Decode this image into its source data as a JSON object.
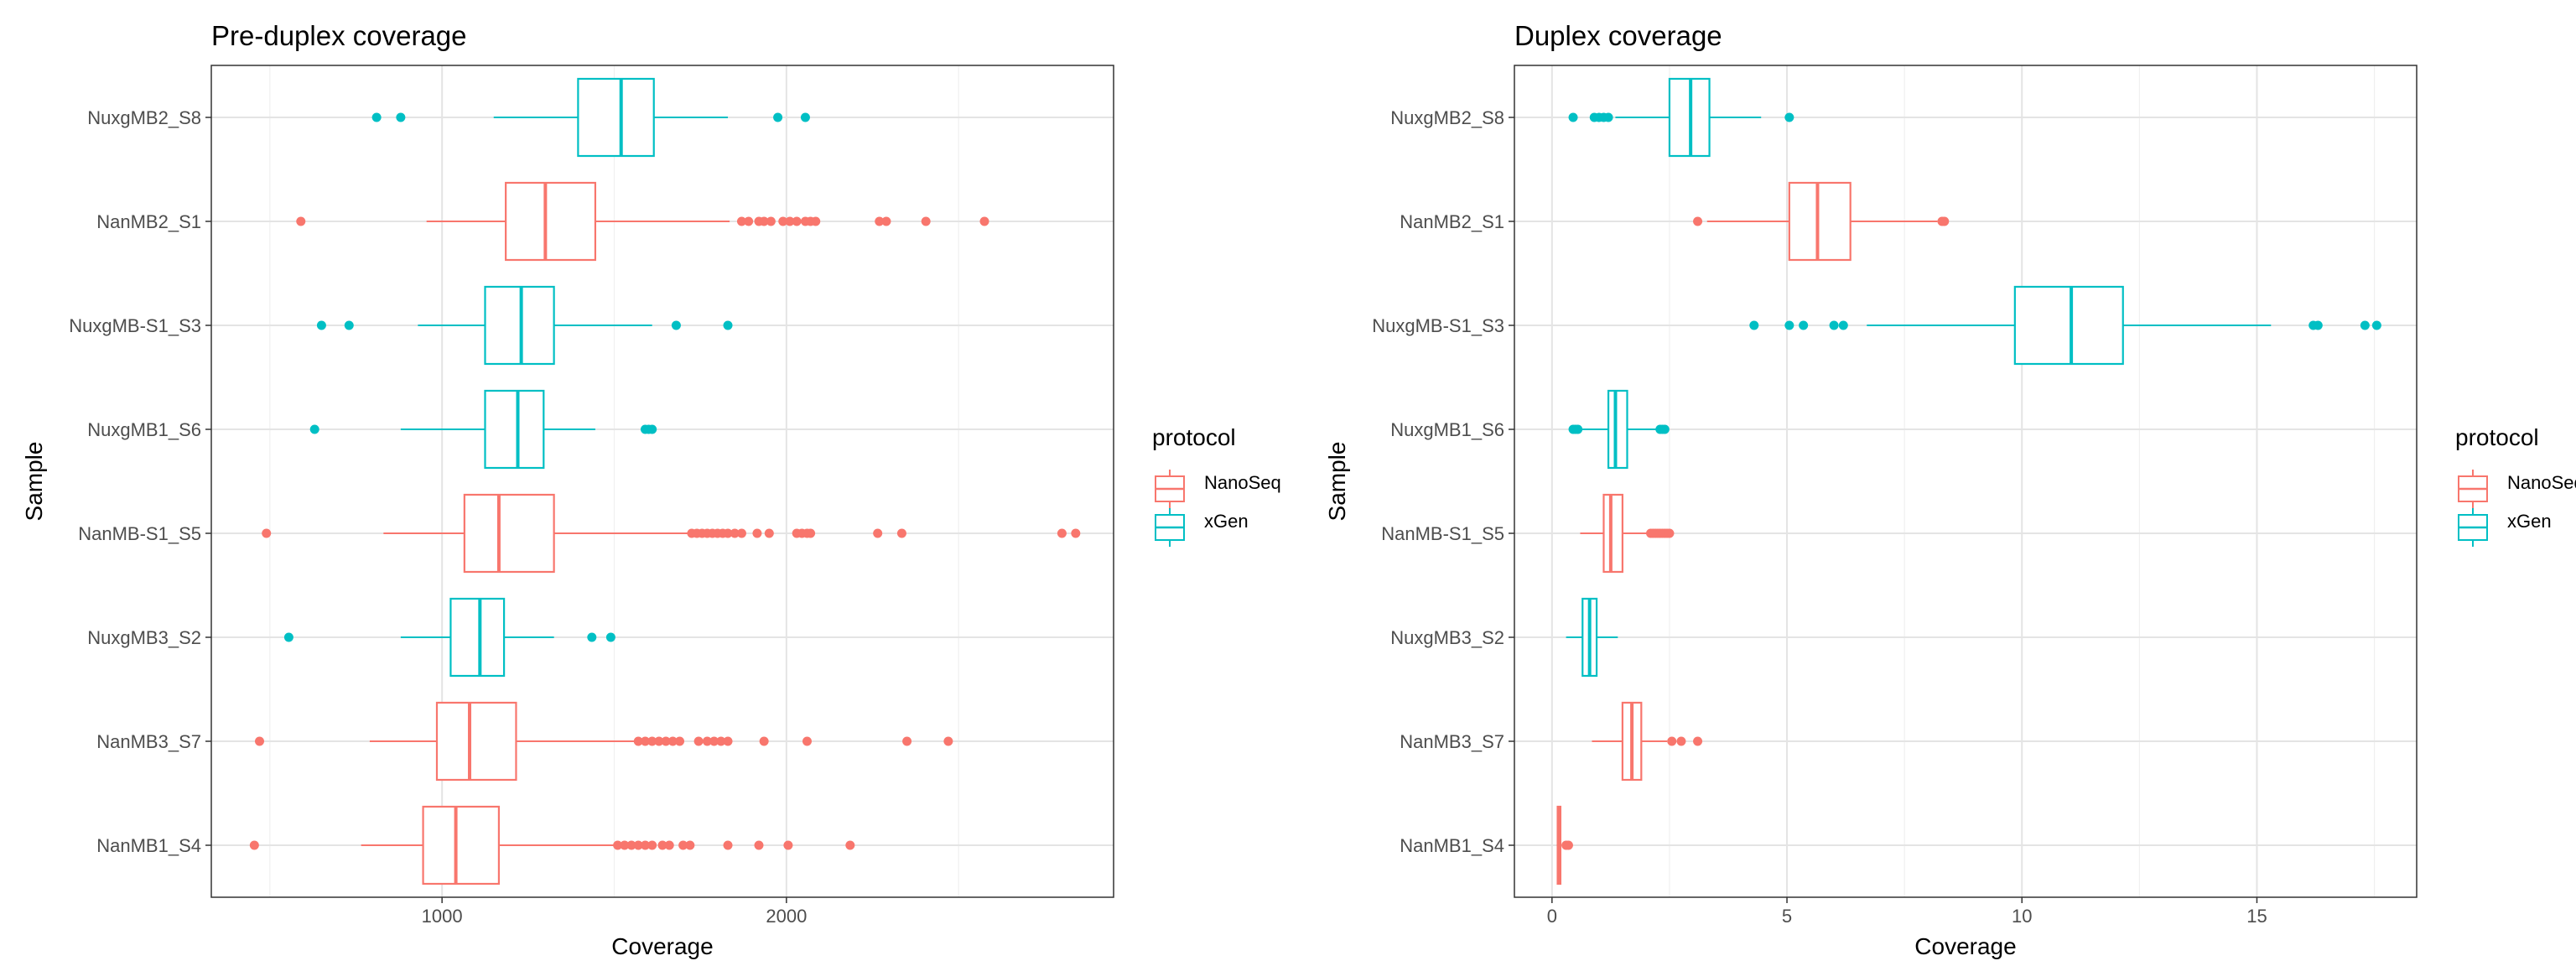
{
  "legend": {
    "title": "protocol",
    "items": [
      {
        "label": "NanoSeq",
        "color": "#F8766D"
      },
      {
        "label": "xGen",
        "color": "#00BFC4"
      }
    ]
  },
  "chart_data": [
    {
      "type": "boxplot",
      "orientation": "horizontal",
      "title": "Pre-duplex coverage",
      "xlabel": "Coverage",
      "ylabel": "Sample",
      "xlim": [
        330,
        2950
      ],
      "xticks": [
        1000,
        2000
      ],
      "grid": true,
      "legend_position": "right",
      "categories": [
        "NuxgMB2_S8",
        "NanMB2_S1",
        "NuxgMB-S1_S3",
        "NuxgMB1_S6",
        "NanMB-S1_S5",
        "NuxgMB3_S2",
        "NanMB3_S7",
        "NanMB1_S4"
      ],
      "boxes": [
        {
          "sample": "NuxgMB2_S8",
          "protocol": "xGen",
          "whisker_low": 1150,
          "q1": 1395,
          "median": 1520,
          "q3": 1615,
          "whisker_high": 1830,
          "outliers": [
            810,
            880,
            1975,
            2055
          ]
        },
        {
          "sample": "NanMB2_S1",
          "protocol": "NanoSeq",
          "whisker_low": 955,
          "q1": 1185,
          "median": 1300,
          "q3": 1445,
          "whisker_high": 1835,
          "outliers": [
            590,
            1870,
            1890,
            1920,
            1935,
            1955,
            1990,
            2010,
            2030,
            2055,
            2070,
            2085,
            2270,
            2290,
            2405,
            2575
          ]
        },
        {
          "sample": "NuxgMB-S1_S3",
          "protocol": "xGen",
          "whisker_low": 930,
          "q1": 1125,
          "median": 1230,
          "q3": 1325,
          "whisker_high": 1610,
          "outliers": [
            650,
            730,
            1680,
            1830
          ]
        },
        {
          "sample": "NuxgMB1_S6",
          "protocol": "xGen",
          "whisker_low": 880,
          "q1": 1125,
          "median": 1220,
          "q3": 1295,
          "whisker_high": 1445,
          "outliers": [
            630,
            1590,
            1600,
            1610
          ]
        },
        {
          "sample": "NanMB-S1_S5",
          "protocol": "NanoSeq",
          "whisker_low": 830,
          "q1": 1065,
          "median": 1165,
          "q3": 1325,
          "whisker_high": 1720,
          "outliers": [
            490,
            1725,
            1740,
            1755,
            1770,
            1785,
            1800,
            1815,
            1830,
            1850,
            1870,
            1915,
            1950,
            2030,
            2045,
            2060,
            2070,
            2265,
            2335,
            2800,
            2840
          ]
        },
        {
          "sample": "NuxgMB3_S2",
          "protocol": "xGen",
          "whisker_low": 880,
          "q1": 1025,
          "median": 1110,
          "q3": 1180,
          "whisker_high": 1325,
          "outliers": [
            555,
            1435,
            1490
          ]
        },
        {
          "sample": "NanMB3_S7",
          "protocol": "NanoSeq",
          "whisker_low": 790,
          "q1": 985,
          "median": 1080,
          "q3": 1215,
          "whisker_high": 1560,
          "outliers": [
            470,
            1570,
            1590,
            1610,
            1630,
            1650,
            1670,
            1690,
            1745,
            1770,
            1790,
            1810,
            1830,
            1935,
            2060,
            2350,
            2470
          ]
        },
        {
          "sample": "NanMB1_S4",
          "protocol": "NanoSeq",
          "whisker_low": 765,
          "q1": 945,
          "median": 1040,
          "q3": 1165,
          "whisker_high": 1500,
          "outliers": [
            455,
            1510,
            1530,
            1550,
            1570,
            1590,
            1610,
            1640,
            1660,
            1700,
            1720,
            1830,
            1920,
            2005,
            2185
          ]
        }
      ]
    },
    {
      "type": "boxplot",
      "orientation": "horizontal",
      "title": "Duplex coverage",
      "xlabel": "Coverage",
      "ylabel": "Sample",
      "xlim": [
        -0.8,
        18.4
      ],
      "xticks": [
        0,
        5,
        10,
        15
      ],
      "grid": true,
      "legend_position": "right",
      "categories": [
        "NuxgMB2_S8",
        "NanMB2_S1",
        "NuxgMB-S1_S3",
        "NuxgMB1_S6",
        "NanMB-S1_S5",
        "NuxgMB3_S2",
        "NanMB3_S7",
        "NanMB1_S4"
      ],
      "boxes": [
        {
          "sample": "NuxgMB2_S8",
          "protocol": "xGen",
          "whisker_low": 1.35,
          "q1": 2.5,
          "median": 2.95,
          "q3": 3.35,
          "whisker_high": 4.45,
          "outliers": [
            0.45,
            0.9,
            1.0,
            1.1,
            1.2,
            5.05
          ]
        },
        {
          "sample": "NanMB2_S1",
          "protocol": "NanoSeq",
          "whisker_low": 3.3,
          "q1": 5.05,
          "median": 5.65,
          "q3": 6.35,
          "whisker_high": 8.2,
          "outliers": [
            3.1,
            8.3,
            8.35
          ]
        },
        {
          "sample": "NuxgMB-S1_S3",
          "protocol": "xGen",
          "whisker_low": 6.7,
          "q1": 9.85,
          "median": 11.05,
          "q3": 12.15,
          "whisker_high": 15.3,
          "outliers": [
            4.3,
            5.05,
            5.35,
            6.0,
            6.2,
            16.2,
            16.3,
            17.3,
            17.55
          ]
        },
        {
          "sample": "NuxgMB1_S6",
          "protocol": "xGen",
          "whisker_low": 0.5,
          "q1": 1.2,
          "median": 1.35,
          "q3": 1.6,
          "whisker_high": 2.3,
          "outliers": [
            0.45,
            0.5,
            0.55,
            2.3,
            2.35,
            2.4
          ]
        },
        {
          "sample": "NanMB-S1_S5",
          "protocol": "NanoSeq",
          "whisker_low": 0.6,
          "q1": 1.1,
          "median": 1.25,
          "q3": 1.5,
          "whisker_high": 2.1,
          "outliers": [
            2.1,
            2.15,
            2.2,
            2.25,
            2.3,
            2.35,
            2.4,
            2.45,
            2.5
          ]
        },
        {
          "sample": "NuxgMB3_S2",
          "protocol": "xGen",
          "whisker_low": 0.3,
          "q1": 0.65,
          "median": 0.8,
          "q3": 0.95,
          "whisker_high": 1.4,
          "outliers": []
        },
        {
          "sample": "NanMB3_S7",
          "protocol": "NanoSeq",
          "whisker_low": 0.85,
          "q1": 1.5,
          "median": 1.7,
          "q3": 1.9,
          "whisker_high": 2.45,
          "outliers": [
            2.55,
            2.75,
            3.1
          ]
        },
        {
          "sample": "NanMB1_S4",
          "protocol": "NanoSeq",
          "whisker_low": 0.1,
          "q1": 0.12,
          "median": 0.15,
          "q3": 0.18,
          "whisker_high": 0.2,
          "outliers": [
            0.3,
            0.35
          ]
        }
      ]
    }
  ]
}
